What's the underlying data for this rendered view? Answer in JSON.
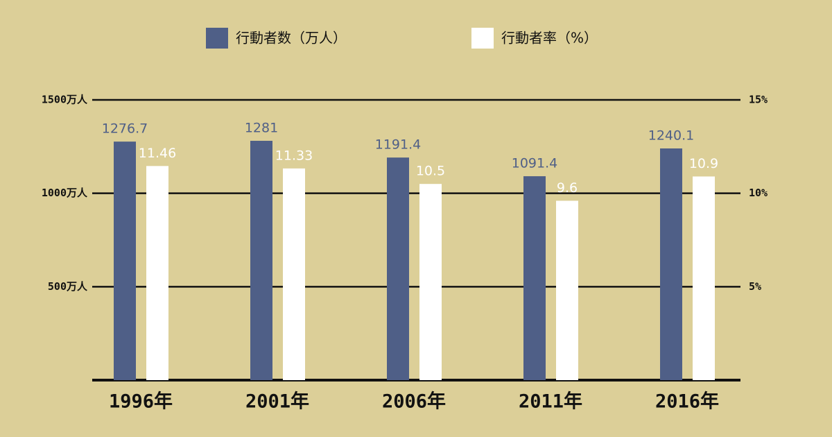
{
  "chart_data": {
    "type": "bar",
    "categories": [
      "1996年",
      "2001年",
      "2006年",
      "2011年",
      "2016年"
    ],
    "series": [
      {
        "name": "行動者数（万人）",
        "color": "#4f5f87",
        "values": [
          1276.7,
          1281,
          1191.4,
          1091.4,
          1240.1
        ]
      },
      {
        "name": "行動者率（%）",
        "color": "#ffffff",
        "axis": "y2",
        "values": [
          11.46,
          11.33,
          10.5,
          9.6,
          10.9
        ]
      }
    ],
    "ylim": [
      0,
      1500
    ],
    "yticks": [
      {
        "value": 500,
        "label": "500万人"
      },
      {
        "value": 1000,
        "label": "1000万人"
      },
      {
        "value": 1500,
        "label": "1500万人"
      }
    ],
    "y2lim": [
      0,
      15
    ],
    "y2ticks": [
      {
        "value": 5,
        "label": "5%"
      },
      {
        "value": 10,
        "label": "10%"
      },
      {
        "value": 15,
        "label": "15%"
      }
    ],
    "grid": true
  }
}
